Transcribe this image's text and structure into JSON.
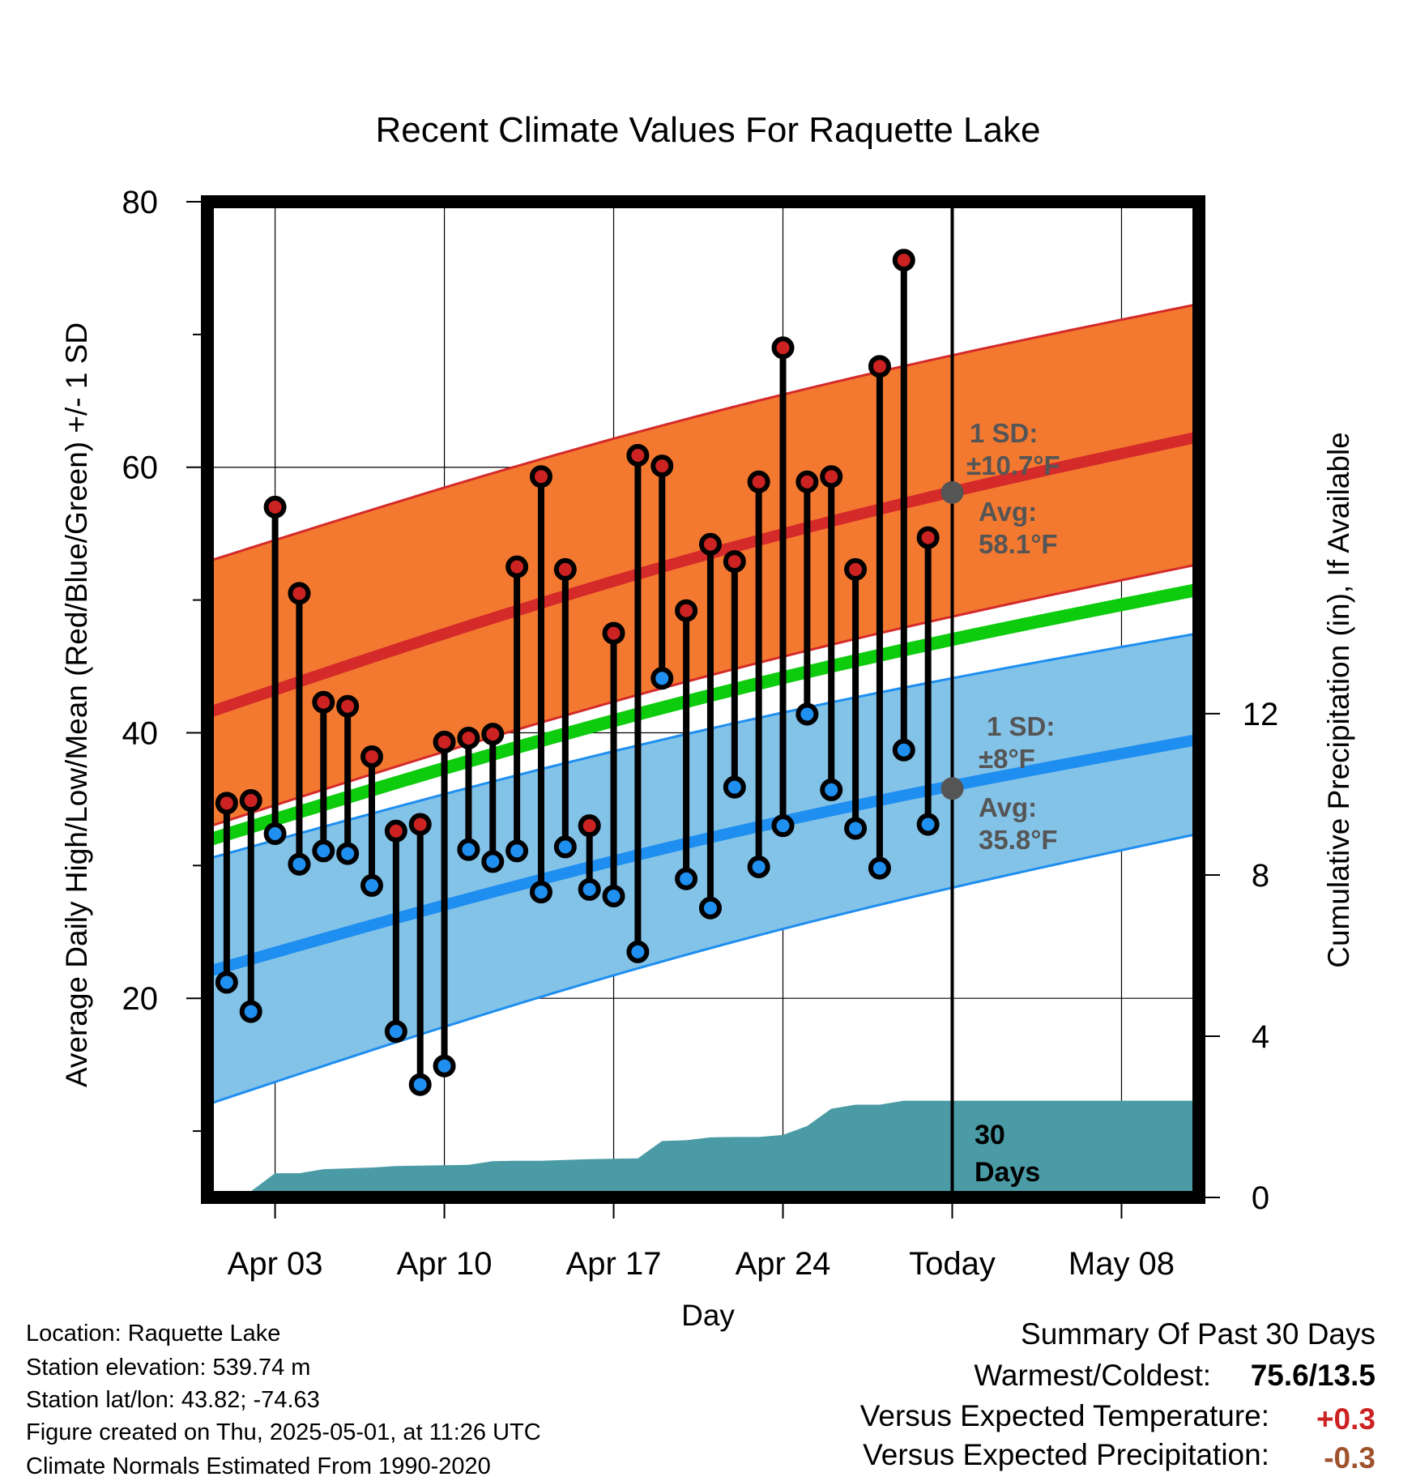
{
  "chart_data": {
    "type": "line",
    "title": "Recent Climate Values For Raquette Lake",
    "xlabel": "Day",
    "ylabel_left": "Average Daily High/Low/Mean (Red/Blue/Green) +/- 1 SD",
    "ylabel_right": "Cumulative Precipitation (in), If Available",
    "x_ticks": [
      {
        "day": 3,
        "label": "Apr 03"
      },
      {
        "day": 10,
        "label": "Apr 10"
      },
      {
        "day": 17,
        "label": "Apr 17"
      },
      {
        "day": 24,
        "label": "Apr 24"
      },
      {
        "day": 31,
        "label": "Today"
      },
      {
        "day": 38,
        "label": "May 08"
      }
    ],
    "xlim": [
      0.2,
      41.2
    ],
    "y_ticks_left": [
      "20",
      "40",
      "60",
      "80"
    ],
    "y_minor_left": [
      10,
      30,
      50,
      70
    ],
    "ylim_left": [
      5,
      80
    ],
    "y_ticks_right": [
      "0",
      "4",
      "8",
      "12"
    ],
    "ylim_right": [
      0,
      24.7
    ],
    "grid": true,
    "today_line_day": 31,
    "today_label": [
      "30",
      "Days"
    ],
    "normals": {
      "high_mean": {
        "x": [
          0.2,
          41.2
        ],
        "y": [
          41.5,
          62.3
        ]
      },
      "high_upper": {
        "x": [
          0.2,
          41.2
        ],
        "y": [
          52.9,
          72.3
        ]
      },
      "high_lower": {
        "x": [
          0.2,
          41.2
        ],
        "y": [
          32.9,
          52.7
        ]
      },
      "low_mean": {
        "x": [
          0.2,
          41.2
        ],
        "y": [
          22.0,
          39.5
        ]
      },
      "low_upper": {
        "x": [
          0.2,
          41.2
        ],
        "y": [
          30.5,
          47.5
        ]
      },
      "low_lower": {
        "x": [
          0.2,
          41.2
        ],
        "y": [
          12.0,
          32.4
        ]
      },
      "daily_mean": {
        "x": [
          0.2,
          41.2
        ],
        "y": [
          31.9,
          50.8
        ]
      }
    },
    "series": [
      {
        "name": "High",
        "days": [
          1,
          2,
          3,
          4,
          5,
          6,
          7,
          8,
          9,
          10,
          11,
          12,
          13,
          14,
          15,
          16,
          17,
          18,
          19,
          20,
          21,
          22,
          23,
          24,
          25,
          26,
          27,
          28,
          29,
          30
        ],
        "values": [
          34.7,
          34.9,
          57.0,
          50.5,
          42.3,
          42.0,
          38.2,
          32.6,
          33.1,
          39.3,
          39.6,
          39.9,
          52.5,
          59.3,
          52.3,
          33.0,
          47.5,
          60.9,
          60.1,
          49.2,
          54.2,
          52.9,
          58.9,
          69.0,
          58.9,
          59.3,
          52.3,
          67.6,
          75.6,
          54.7
        ]
      },
      {
        "name": "Low",
        "days": [
          1,
          2,
          3,
          4,
          5,
          6,
          7,
          8,
          9,
          10,
          11,
          12,
          13,
          14,
          15,
          16,
          17,
          18,
          19,
          20,
          21,
          22,
          23,
          24,
          25,
          26,
          27,
          28,
          29,
          30
        ],
        "values": [
          21.2,
          19.0,
          32.4,
          30.1,
          31.1,
          30.9,
          28.5,
          17.5,
          13.5,
          14.9,
          31.2,
          30.3,
          31.1,
          28.0,
          31.4,
          28.2,
          27.7,
          23.5,
          44.1,
          29.0,
          26.8,
          35.9,
          29.9,
          33.0,
          41.4,
          35.7,
          32.8,
          29.8,
          38.7,
          33.1
        ]
      }
    ],
    "normal_markers": [
      {
        "day": 31,
        "value": 58.1
      },
      {
        "day": 31,
        "value": 35.8
      }
    ],
    "precip_cumulative": {
      "days": [
        0.2,
        1.0,
        1.4,
        2.0,
        3.0,
        4.0,
        5.0,
        6.0,
        7.0,
        8.0,
        9.0,
        10.0,
        11.0,
        12.0,
        13.0,
        14.0,
        15.0,
        16.0,
        17.0,
        18.0,
        19.0,
        20.0,
        21.0,
        22.0,
        23.0,
        24.0,
        25.0,
        26.0,
        27.0,
        28.0,
        29.0,
        30.0,
        31.0,
        41.2
      ],
      "values": [
        0,
        0,
        0,
        0.15,
        0.6,
        0.6,
        0.7,
        0.72,
        0.74,
        0.78,
        0.79,
        0.8,
        0.81,
        0.9,
        0.91,
        0.91,
        0.93,
        0.95,
        0.96,
        0.97,
        1.4,
        1.42,
        1.49,
        1.5,
        1.5,
        1.55,
        1.77,
        2.2,
        2.3,
        2.3,
        2.4,
        2.4,
        2.4,
        2.4
      ]
    },
    "colors": {
      "high": "#d42a2a",
      "high_band": "#f47930",
      "low": "#1e8ef0",
      "low_band": "#84c3e8",
      "mean": "#0dcb0d",
      "precip": "#4a9ba5",
      "high_marker": "#cc2222",
      "low_marker": "#1f8ff0"
    }
  },
  "annotations": {
    "high_sd_line1": "1 SD:",
    "high_sd_line2": "±10.7°F",
    "high_avg_line1": "Avg:",
    "high_avg_line2": "58.1°F",
    "low_sd_line1": "1 SD:",
    "low_sd_line2": "±8°F",
    "low_avg_line1": "Avg:",
    "low_avg_line2": "35.8°F"
  },
  "station": {
    "location": "Location: Raquette Lake",
    "elevation": "Station elevation: 539.74 m",
    "latlon": "Station lat/lon: 43.82; -74.63",
    "created": "Figure created on Thu, 2025-05-01, at 11:26 UTC",
    "normals": "Climate Normals Estimated From 1990-2020"
  },
  "summary": {
    "heading": "Summary Of Past 30 Days",
    "warm_cold_label": "Warmest/Coldest:",
    "warm_cold_value": "75.6/13.5",
    "temp_label": "Versus Expected Temperature:",
    "temp_value": "+0.3",
    "temp_color": "#cc2222",
    "precip_label": "Versus Expected Precipitation:",
    "precip_value": "-0.3",
    "precip_color": "#a0522d"
  }
}
